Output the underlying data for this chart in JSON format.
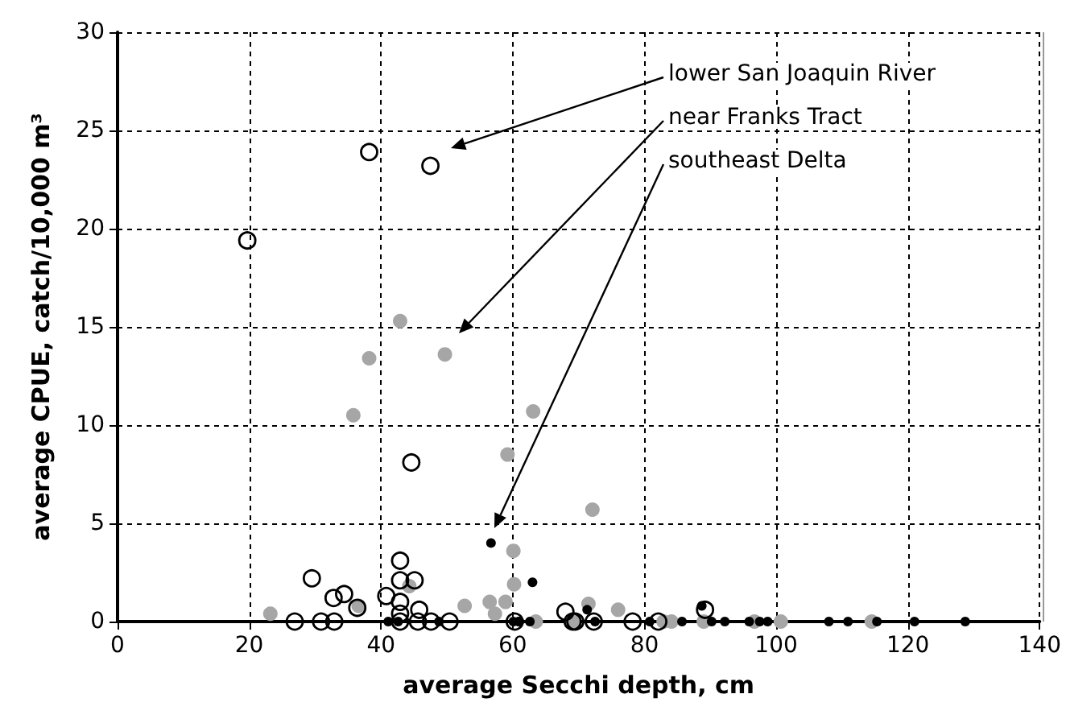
{
  "chart_data": {
    "type": "scatter",
    "xlabel": "average Secchi depth, cm",
    "ylabel": "average CPUE, catch/10,000 m³",
    "xlim": [
      0,
      140
    ],
    "xticks": [
      0,
      20,
      40,
      60,
      80,
      100,
      120,
      140
    ],
    "ylim": [
      0,
      30
    ],
    "yticks": [
      0,
      5,
      10,
      15,
      20,
      25,
      30
    ],
    "grid": true,
    "marker": "circle",
    "series": [
      {
        "color": "#000000",
        "x": [
          38.2,
          47.5,
          19.7,
          44.6,
          29.5,
          32.8,
          34.4,
          36.4,
          26.9,
          30.9,
          32.9,
          42.9,
          42.9,
          45.1,
          40.8,
          42.9,
          42.9,
          45.8,
          45.6,
          47.6,
          50.4,
          42.9,
          68.0,
          69.1,
          60.3,
          69.5,
          72.3,
          78.2,
          82.1,
          89.2
        ],
        "values": [
          23.9,
          23.2,
          19.4,
          8.1,
          2.2,
          1.2,
          1.4,
          0.7,
          0,
          0,
          0,
          3.1,
          2.1,
          2.1,
          1.3,
          1.0,
          0.4,
          0.6,
          0,
          0,
          0,
          0,
          0.5,
          0,
          0,
          0,
          0,
          0,
          0,
          0.6
        ]
      },
      {
        "color": "#a6a6a6",
        "x": [
          42.9,
          38.2,
          49.7,
          35.8,
          63.1,
          59.2,
          72.1,
          23.2,
          36.6,
          44.3,
          52.7,
          56.5,
          57.3,
          58.9,
          60.1,
          60.2,
          63.5,
          69.1,
          71.5,
          76.0,
          82.9,
          84.1,
          89.0,
          96.7,
          100.7,
          114.5
        ],
        "values": [
          15.3,
          13.4,
          13.6,
          10.5,
          10.7,
          8.5,
          5.7,
          0.4,
          0.8,
          1.8,
          0.8,
          1.0,
          0.4,
          1.0,
          3.6,
          1.9,
          0,
          0,
          0.9,
          0.6,
          0,
          0,
          0,
          0,
          0,
          0
        ]
      },
      {
        "color": "#000000",
        "x": [
          56.7,
          63.0,
          41.1,
          42.6,
          48.8,
          60.1,
          60.9,
          61.0,
          62.6,
          71.3,
          72.5,
          80.8,
          85.7,
          88.7,
          90.2,
          92.2,
          95.9,
          97.5,
          98.7,
          108.0,
          110.9,
          115.3,
          121.0,
          128.7
        ],
        "values": [
          4.0,
          2.0,
          0,
          0,
          0,
          0,
          0,
          0,
          0,
          0.6,
          0,
          0,
          0,
          0.8,
          0,
          0,
          0,
          0,
          0,
          0,
          0,
          0,
          0,
          0
        ]
      }
    ],
    "annotations": [
      "lower San Joaquin River",
      "near Franks Tract",
      "southeast Delta"
    ]
  }
}
